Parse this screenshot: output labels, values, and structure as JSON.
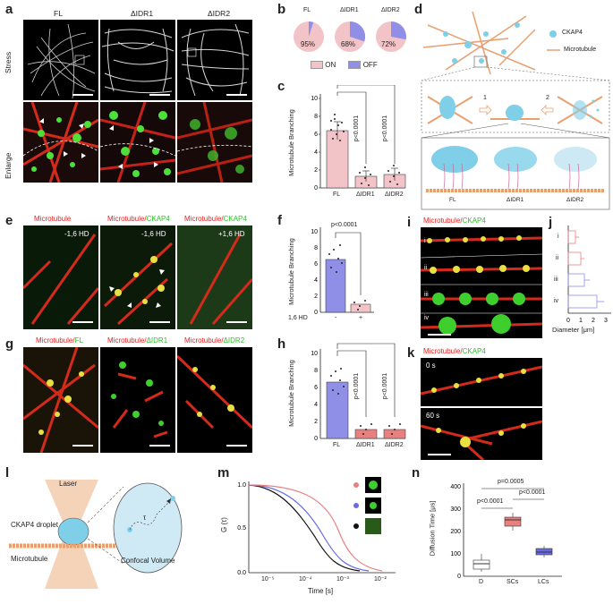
{
  "panels": [
    "a",
    "b",
    "c",
    "d",
    "e",
    "f",
    "g",
    "h",
    "i",
    "j",
    "k",
    "l",
    "m",
    "n"
  ],
  "a": {
    "cols": [
      "FL",
      "ΔIDR1",
      "ΔIDR2"
    ],
    "rows": [
      "Stress",
      "Enlarge"
    ]
  },
  "b": {
    "labels": [
      "FL",
      "ΔIDR1",
      "ΔIDR2"
    ],
    "pcts": [
      "95%",
      "68%",
      "72%"
    ],
    "legend_on": "ON",
    "legend_off": "OFF"
  },
  "c": {
    "ylabel": "Microtubule Branching",
    "cats": [
      "FL",
      "ΔIDR1",
      "ΔIDR2"
    ],
    "p1": "p<0.0001",
    "p2": "p<0.0001",
    "yticks": [
      "0",
      "2",
      "4",
      "6",
      "8",
      "10"
    ]
  },
  "d": {
    "legend1": "CKAP4",
    "legend2": "Microtubule",
    "step1": "1",
    "step2": "2",
    "cats": [
      "FL",
      "ΔIDR1",
      "ΔIDR2"
    ]
  },
  "e": {
    "t1": "Microtubule",
    "t2a": "Microtubule/",
    "t2b": "CKAP4",
    "t3a": "Microtubule/",
    "t3b": "CKAP4",
    "c1": "-1,6 HD",
    "c2": "-1,6 HD",
    "c3": "+1,6 HD"
  },
  "f": {
    "ylabel": "Microtubule Branching",
    "p": "p<0.0001",
    "xlab": "1,6 HD",
    "cats": [
      "-",
      "+"
    ],
    "yticks": [
      "0",
      "2",
      "4",
      "6",
      "8",
      "10"
    ]
  },
  "g": {
    "t1a": "Microtubule/",
    "t1b": "FL",
    "t2a": "Microtubule/",
    "t2b": "ΔIDR1",
    "t3a": "Microtubule/",
    "t3b": "ΔIDR2"
  },
  "h": {
    "ylabel": "Microtubule Branching",
    "cats": [
      "FL",
      "ΔIDR1",
      "ΔIDR2"
    ],
    "p1": "p<0.0001",
    "p2": "p<0.0001",
    "yticks": [
      "0",
      "2",
      "4",
      "6",
      "8",
      "10"
    ]
  },
  "i": {
    "ta": "Microtubule/",
    "tb": "CKAP4",
    "rows": [
      "i",
      "ii",
      "iii",
      "iv"
    ]
  },
  "j": {
    "xlabel": "Diameter [μm]",
    "rows": [
      "i",
      "ii",
      "iii",
      "iv"
    ],
    "xticks": [
      "0",
      "1",
      "2",
      "3"
    ]
  },
  "k": {
    "ta": "Microtubule/",
    "tb": "CKAP4",
    "t0": "0 s",
    "t1": "60 s"
  },
  "l": {
    "laser": "Laser",
    "droplet": "CKAP4 droplet",
    "mt": "Microtubule",
    "cv": "Confocal Volume",
    "tau": "τ"
  },
  "m": {
    "ylabel": "G (τ)",
    "xlabel": "Time [s]",
    "yticks": [
      "0.0",
      "0.5",
      "1.0"
    ],
    "xticks": [
      "10⁻⁵",
      "10⁻⁴",
      "10⁻³",
      "10⁻²"
    ]
  },
  "n": {
    "ylabel": "Diffusion Time [μs]",
    "cats": [
      "D",
      "SCs",
      "LCs"
    ],
    "p1": "p=0.0005",
    "p2": "p<0.0001",
    "p3": "p<0.0001",
    "yticks": [
      "0",
      "100",
      "200",
      "300",
      "400"
    ]
  },
  "colors": {
    "red": "#e8201c",
    "green": "#2ec22a",
    "pink": "#f2c4c8",
    "blue": "#8f8fe8",
    "salmon": "#e88080",
    "mt": "#e8a070",
    "ckap": "#7fcfe8"
  }
}
